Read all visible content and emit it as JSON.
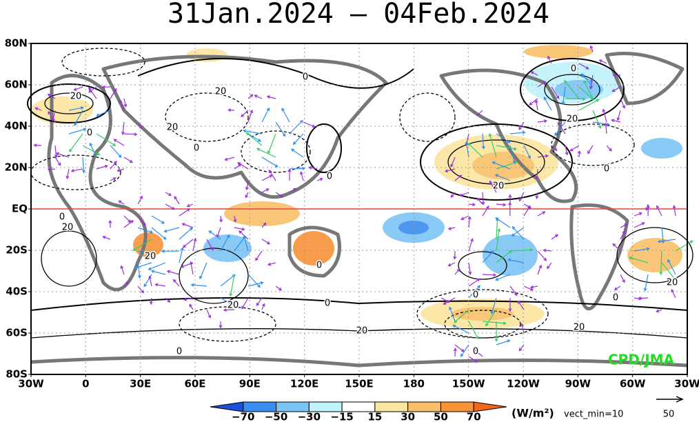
{
  "title": "31Jan.2024 – 04Feb.2024",
  "map": {
    "lat_labels": [
      "80N",
      "60N",
      "40N",
      "20N",
      "EQ",
      "20S",
      "40S",
      "60S",
      "80S"
    ],
    "lon_labels": [
      "30W",
      "0",
      "30E",
      "60E",
      "90E",
      "120E",
      "150E",
      "180",
      "150W",
      "120W",
      "90W",
      "60W",
      "30W"
    ],
    "contour_labels": [
      "0",
      "20",
      "0",
      "20",
      "0",
      "0",
      "0",
      "20",
      "0",
      "20",
      "0",
      "0",
      "20",
      "0",
      "20",
      "20",
      "0",
      "20",
      "0",
      "20",
      "0",
      "20",
      "20",
      "0"
    ],
    "credit": "CPD/JMA"
  },
  "colorbar": {
    "labels": [
      "−70",
      "−50",
      "−30",
      "−15",
      "15",
      "30",
      "50",
      "70"
    ],
    "colors": [
      "#1c4fdc",
      "#3b8cf0",
      "#7cc4f5",
      "#bff2fb",
      "#ffffff",
      "#fbe6a0",
      "#f9c06a",
      "#f79338",
      "#f2661a"
    ],
    "units": "(W/m²)",
    "vect_min": "vect_min=10"
  },
  "reference_vector": "50"
}
